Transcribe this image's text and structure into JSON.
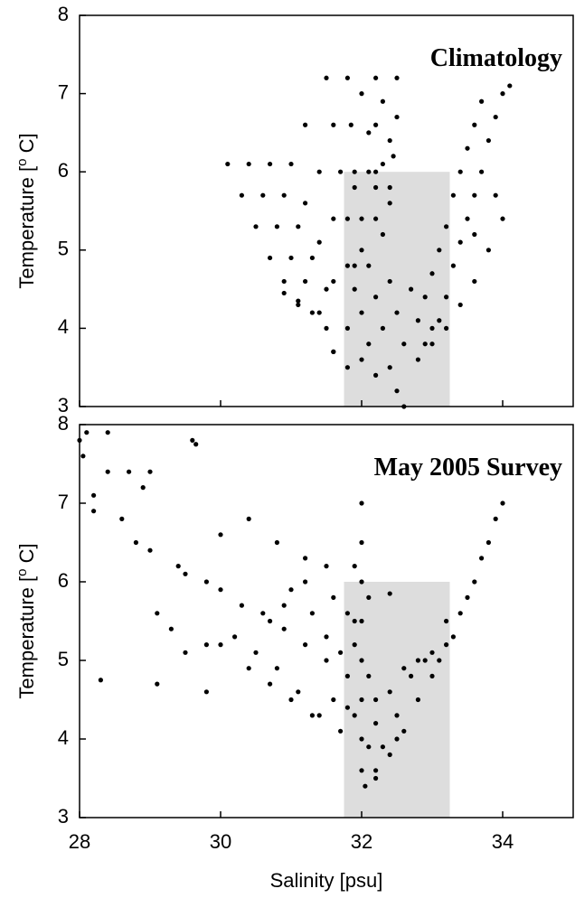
{
  "chart_data": [
    {
      "type": "scatter",
      "annotation": "Climatology",
      "xlim": [
        28,
        35
      ],
      "ylim": [
        3,
        8
      ],
      "xticks": [
        28,
        30,
        32,
        34
      ],
      "yticks": [
        3,
        4,
        5,
        6,
        7,
        8
      ],
      "ylabel_parts": [
        "Temperature [",
        "o",
        " C]"
      ],
      "shaded_region": {
        "x": [
          31.75,
          33.25
        ],
        "y": [
          3,
          6
        ],
        "color": "#dddddd"
      },
      "series": [
        {
          "color": "#000000",
          "x": [
            30.1,
            30.3,
            30.5,
            30.7,
            30.9,
            31.1,
            30.4,
            30.6,
            30.8,
            31.0,
            31.2,
            31.4,
            31.6,
            30.7,
            30.9,
            31.1,
            31.3,
            31.5,
            31.0,
            31.2,
            31.4,
            31.6,
            30.9,
            31.1,
            31.3,
            31.5,
            31.6,
            31.2,
            31.4,
            31.6,
            31.8,
            31.5,
            31.6,
            31.7,
            31.8,
            31.9,
            31.8,
            31.85,
            31.9,
            32.0,
            32.2,
            32.2,
            32.2,
            32.2,
            32.5,
            32.5,
            32.45,
            32.4,
            32.0,
            32.1,
            32.3,
            32.4,
            31.8,
            31.9,
            32.0,
            32.0,
            32.1,
            32.1,
            32.2,
            32.2,
            32.3,
            32.3,
            32.4,
            32.4,
            32.5,
            32.5,
            32.6,
            32.6,
            32.7,
            32.8,
            32.9,
            33.0,
            32.0,
            31.9,
            32.1,
            32.3,
            31.8,
            32.2,
            32.4,
            33.0,
            33.1,
            33.2,
            33.3,
            33.4,
            33.5,
            33.6,
            33.7,
            33.8,
            33.9,
            34.0,
            34.1,
            32.8,
            32.9,
            33.0,
            33.1,
            33.2,
            33.3,
            33.4,
            33.5,
            33.6,
            33.7,
            33.2,
            33.4,
            33.6,
            33.8,
            34.0,
            33.9,
            33.6
          ],
          "values": [
            6.1,
            5.7,
            5.3,
            4.9,
            4.6,
            4.3,
            6.1,
            5.7,
            5.3,
            4.9,
            4.6,
            4.2,
            3.7,
            6.1,
            5.7,
            5.3,
            4.9,
            4.5,
            6.1,
            5.6,
            5.1,
            4.6,
            4.45,
            4.35,
            4.2,
            4.0,
            3.7,
            6.6,
            6.0,
            5.4,
            4.8,
            7.2,
            6.6,
            6.0,
            5.4,
            4.8,
            7.2,
            6.6,
            6.0,
            5.4,
            7.2,
            6.6,
            6.0,
            5.4,
            7.2,
            6.7,
            6.2,
            5.6,
            7.0,
            6.5,
            6.9,
            6.4,
            4.0,
            4.5,
            5.0,
            4.2,
            4.8,
            3.8,
            4.4,
            5.8,
            4.0,
            5.2,
            4.6,
            3.5,
            3.2,
            4.2,
            3.8,
            3.0,
            4.5,
            3.6,
            3.8,
            4.0,
            3.6,
            5.8,
            6.0,
            6.1,
            3.5,
            3.4,
            5.8,
            3.8,
            4.1,
            4.4,
            4.8,
            5.1,
            5.4,
            5.7,
            6.0,
            6.4,
            6.7,
            7.0,
            7.1,
            4.1,
            4.4,
            4.7,
            5.0,
            5.3,
            5.7,
            6.0,
            6.3,
            6.6,
            6.9,
            4.0,
            4.3,
            4.6,
            5.0,
            5.4,
            5.7,
            5.2
          ]
        }
      ]
    },
    {
      "type": "scatter",
      "annotation": "May 2005 Survey",
      "xlim": [
        28,
        35
      ],
      "ylim": [
        3,
        8
      ],
      "xticks": [
        28,
        30,
        32,
        34
      ],
      "yticks": [
        3,
        4,
        5,
        6,
        7,
        8
      ],
      "xlabel": "Salinity [psu]",
      "ylabel_parts": [
        "Temperature [",
        "o",
        " C]"
      ],
      "shaded_region": {
        "x": [
          31.75,
          33.25
        ],
        "y": [
          3,
          6
        ],
        "color": "#dddddd"
      },
      "series": [
        {
          "color": "#000000",
          "x": [
            28.0,
            28.05,
            28.1,
            28.4,
            28.2,
            28.2,
            28.4,
            28.7,
            28.9,
            29.0,
            29.6,
            29.65,
            28.3,
            29.1,
            29.3,
            29.1,
            28.6,
            28.8,
            29.0,
            29.4,
            30.0,
            30.4,
            30.8,
            31.2,
            31.5,
            30.7,
            30.9,
            29.8,
            29.5,
            29.8,
            29.5,
            29.8,
            30.0,
            30.3,
            30.6,
            30.9,
            31.2,
            31.5,
            31.8,
            30.2,
            30.5,
            30.8,
            31.1,
            31.4,
            31.7,
            30.0,
            30.4,
            30.7,
            31.0,
            31.3,
            31.6,
            31.0,
            31.3,
            31.5,
            31.7,
            31.2,
            31.6,
            31.9,
            32.0,
            32.0,
            32.0,
            32.0,
            32.0,
            32.0,
            32.0,
            32.0,
            31.9,
            31.9,
            31.9,
            32.1,
            32.1,
            32.1,
            31.8,
            31.8,
            32.2,
            32.2,
            32.05,
            32.4,
            32.2,
            32.4,
            32.6,
            32.8,
            33.0,
            33.2,
            33.4,
            33.6,
            33.8,
            34.0,
            32.3,
            32.5,
            32.7,
            32.9,
            33.1,
            33.3,
            33.5,
            33.7,
            33.9,
            32.4,
            32.6,
            32.8,
            33.0,
            32.2,
            32.5,
            33.2
          ],
          "values": [
            7.8,
            7.6,
            7.9,
            7.9,
            7.1,
            6.9,
            7.4,
            7.4,
            7.2,
            7.4,
            7.8,
            7.75,
            4.75,
            4.7,
            5.4,
            5.6,
            6.8,
            6.5,
            6.4,
            6.2,
            6.6,
            6.8,
            6.5,
            6.3,
            6.2,
            5.5,
            5.7,
            5.2,
            5.1,
            4.6,
            6.1,
            6.0,
            5.9,
            5.7,
            5.6,
            5.4,
            5.2,
            5.0,
            4.8,
            5.3,
            5.1,
            4.9,
            4.6,
            4.3,
            4.1,
            5.2,
            4.9,
            4.7,
            4.5,
            4.3,
            4.5,
            5.9,
            5.6,
            5.3,
            5.1,
            6.0,
            5.8,
            5.5,
            7.0,
            6.5,
            6.0,
            5.5,
            5.0,
            4.5,
            4.0,
            3.6,
            6.2,
            5.2,
            4.3,
            5.8,
            4.8,
            3.9,
            5.6,
            4.4,
            4.5,
            3.6,
            3.4,
            5.85,
            3.5,
            3.8,
            4.1,
            4.5,
            4.8,
            5.2,
            5.6,
            6.0,
            6.5,
            7.0,
            3.9,
            4.3,
            4.8,
            5.0,
            5.0,
            5.3,
            5.8,
            6.3,
            6.8,
            4.6,
            4.9,
            5.0,
            5.1,
            4.2,
            4.0,
            5.5
          ]
        }
      ]
    }
  ]
}
